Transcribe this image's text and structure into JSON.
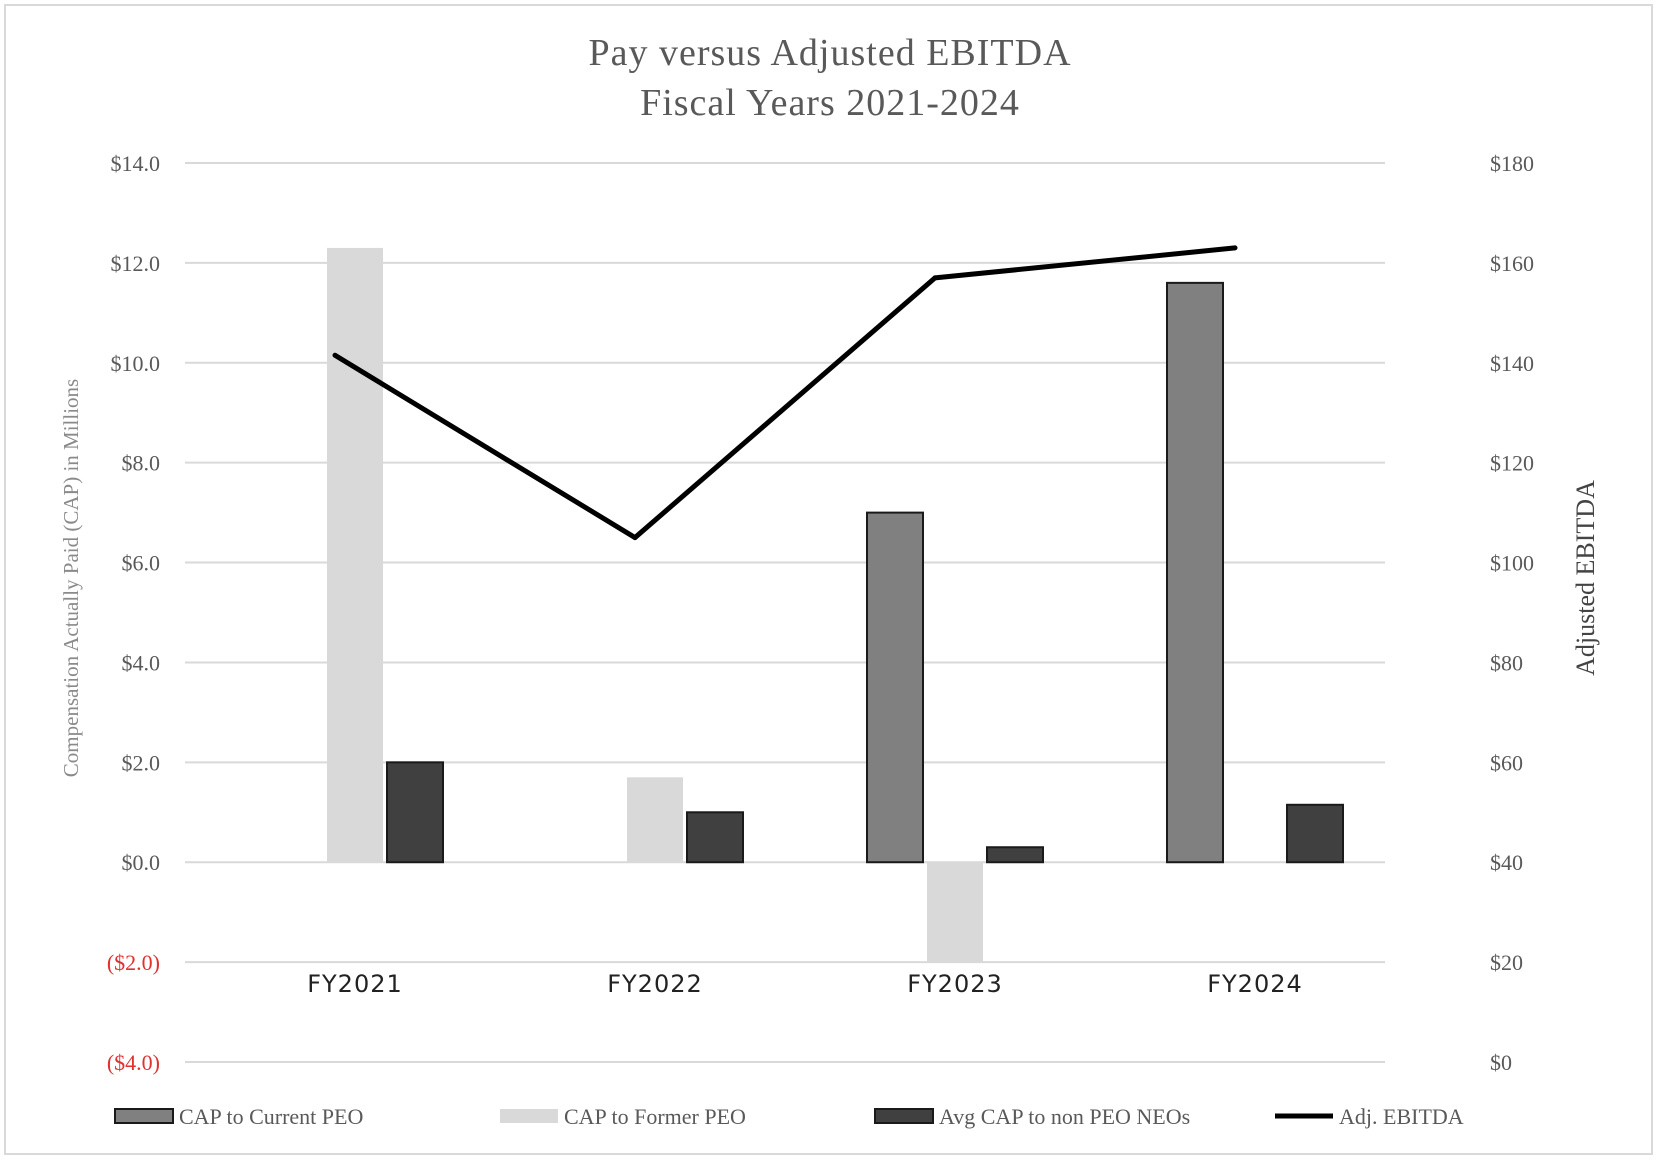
{
  "chart_data": {
    "type": "bar",
    "title": [
      "Pay versus Adjusted EBITDA",
      "Fiscal Years 2021-2024"
    ],
    "categories": [
      "FY2021",
      "FY2022",
      "FY2023",
      "FY2024"
    ],
    "ylabel_left": "Compensation Actually Paid (CAP) in Millions",
    "ylabel_right": "Adjusted EBITDA",
    "y_left": {
      "range": [
        -4,
        14
      ],
      "ticks": [
        14,
        12,
        10,
        8,
        6,
        4,
        2,
        0,
        -2,
        -4
      ],
      "tick_labels": [
        "$14.0",
        "$12.0",
        "$10.0",
        "$8.0",
        "$6.0",
        "$4.0",
        "$2.0",
        "$0.0",
        "($2.0)",
        "($4.0)"
      ]
    },
    "y_right": {
      "range": [
        0,
        180
      ],
      "ticks": [
        180,
        160,
        140,
        120,
        100,
        80,
        60,
        40,
        20,
        0
      ],
      "tick_labels": [
        "$180",
        "$160",
        "$140",
        "$120",
        "$100",
        "$80",
        "$60",
        "$40",
        "$20",
        "$0"
      ]
    },
    "grid": true,
    "legend_position": "bottom",
    "series": [
      {
        "name": "CAP to Current PEO",
        "type": "bar",
        "axis": "left",
        "color": "#808080",
        "values": [
          null,
          null,
          7.0,
          11.6
        ]
      },
      {
        "name": "CAP to Former PEO",
        "type": "bar",
        "axis": "left",
        "color": "#d9d9d9",
        "values": [
          12.3,
          1.7,
          -2.0,
          null
        ]
      },
      {
        "name": "Avg CAP to non PEO NEOs",
        "type": "bar",
        "axis": "left",
        "color": "#404040",
        "values": [
          2.0,
          1.0,
          0.3,
          1.15
        ]
      },
      {
        "name": "Adj. EBITDA",
        "type": "line",
        "axis": "right",
        "color": "#000000",
        "values": [
          141.5,
          105,
          157,
          163
        ]
      }
    ]
  }
}
